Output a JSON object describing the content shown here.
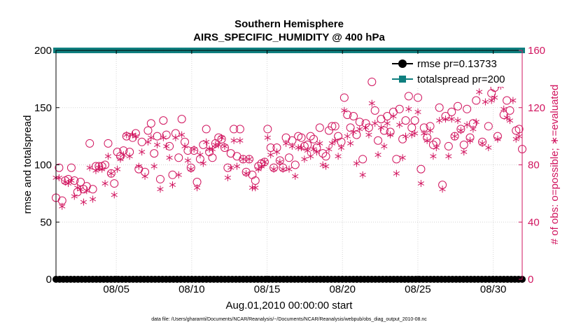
{
  "chart_data": {
    "type": "scatter",
    "title": "Southern Hemisphere",
    "subtitle": "AIRS_SPECIFIC_HUMIDITY @ 400 hPa",
    "xlabel": "Aug.01,2010 00:00:00 start",
    "ylabel": "rmse and totalspread",
    "ylabel_right": "# of obs: o=possible; ∗=evaluated",
    "footnote": "data file: /Users/gharamti/Documents/NCAR/Reanalysis/~/Documents/NCAR/Reanalysis/webpub/obs_diag_output_2010-08.nc",
    "x_range_days": [
      1.0,
      31.92
    ],
    "ylim": [
      0,
      200
    ],
    "ylim_right": [
      0,
      160
    ],
    "xticks": [
      {
        "day": 5,
        "label": "08/05"
      },
      {
        "day": 10,
        "label": "08/10"
      },
      {
        "day": 15,
        "label": "08/15"
      },
      {
        "day": 20,
        "label": "08/20"
      },
      {
        "day": 25,
        "label": "08/25"
      },
      {
        "day": 30,
        "label": "08/30"
      }
    ],
    "yticks_left": [
      "0",
      "50",
      "100",
      "150",
      "200"
    ],
    "yticks_right": [
      "0",
      "40",
      "80",
      "120",
      "160"
    ],
    "grid": true,
    "legend_position": "top-right",
    "series": [
      {
        "name": "rmse pr=0.13733",
        "axis": "left",
        "color": "#000000",
        "marker": "filled-circle",
        "constant_value": 0
      },
      {
        "name": "totalspread pr=200",
        "axis": "left",
        "color": "#0f7f7f",
        "marker": "filled-square",
        "constant_value": 200
      }
    ],
    "obs_possible": [
      57,
      78,
      55,
      69,
      70,
      78,
      69,
      61,
      68,
      63,
      65,
      95,
      63,
      79,
      79,
      79,
      80,
      95,
      74,
      67,
      89,
      86,
      90,
      100,
      89,
      99,
      102,
      77,
      96,
      75,
      104,
      109,
      88,
      100,
      70,
      111,
      101,
      93,
      73,
      102,
      85,
      112,
      96,
      90,
      78,
      90,
      68,
      84,
      94,
      105,
      89,
      85,
      95,
      99,
      98,
      92,
      78,
      88,
      105,
      86,
      105,
      84,
      75,
      84,
      73,
      69,
      79,
      81,
      82,
      105,
      92,
      78,
      92,
      83,
      78,
      99,
      85,
      97,
      80,
      100,
      99,
      93,
      94,
      100,
      98,
      92,
      106,
      88,
      86,
      104,
      107,
      107,
      100,
      96,
      127,
      115,
      106,
      114,
      101,
      110,
      84,
      109,
      106,
      138,
      118,
      97,
      112,
      104,
      114,
      103,
      117,
      84,
      119,
      98,
      111,
      128,
      106,
      111,
      127,
      77,
      106,
      99,
      107,
      94,
      96,
      120,
      66,
      114,
      93,
      117,
      100,
      121,
      105,
      94,
      119,
      99,
      109,
      125,
      145,
      96,
      139,
      107,
      130,
      134,
      100,
      141,
      115,
      125,
      118,
      147,
      104,
      105,
      91
    ],
    "obs_evaluated": [
      71,
      71,
      51,
      68,
      67,
      69,
      58,
      64,
      63,
      54,
      62,
      78,
      56,
      76,
      78,
      77,
      67,
      86,
      74,
      59,
      77,
      84,
      87,
      101,
      86,
      101,
      100,
      79,
      89,
      72,
      96,
      99,
      79,
      94,
      63,
      99,
      93,
      85,
      66,
      99,
      73,
      101,
      93,
      83,
      77,
      91,
      64,
      87,
      81,
      96,
      91,
      91,
      94,
      94,
      99,
      93,
      71,
      78,
      97,
      79,
      97,
      84,
      74,
      84,
      64,
      64,
      77,
      79,
      82,
      99,
      87,
      77,
      89,
      82,
      77,
      95,
      77,
      93,
      72,
      92,
      92,
      84,
      90,
      86,
      91,
      89,
      95,
      80,
      79,
      91,
      95,
      97,
      86,
      92,
      118,
      100,
      95,
      103,
      81,
      105,
      73,
      106,
      101,
      123,
      109,
      87,
      106,
      93,
      109,
      101,
      114,
      74,
      108,
      85,
      100,
      119,
      101,
      102,
      117,
      67,
      102,
      97,
      104,
      86,
      92,
      111,
      63,
      112,
      86,
      112,
      100,
      111,
      104,
      89,
      108,
      97,
      105,
      110,
      131,
      95,
      124,
      92,
      125,
      127,
      98,
      135,
      119,
      113,
      111,
      125,
      98,
      100,
      0
    ]
  }
}
